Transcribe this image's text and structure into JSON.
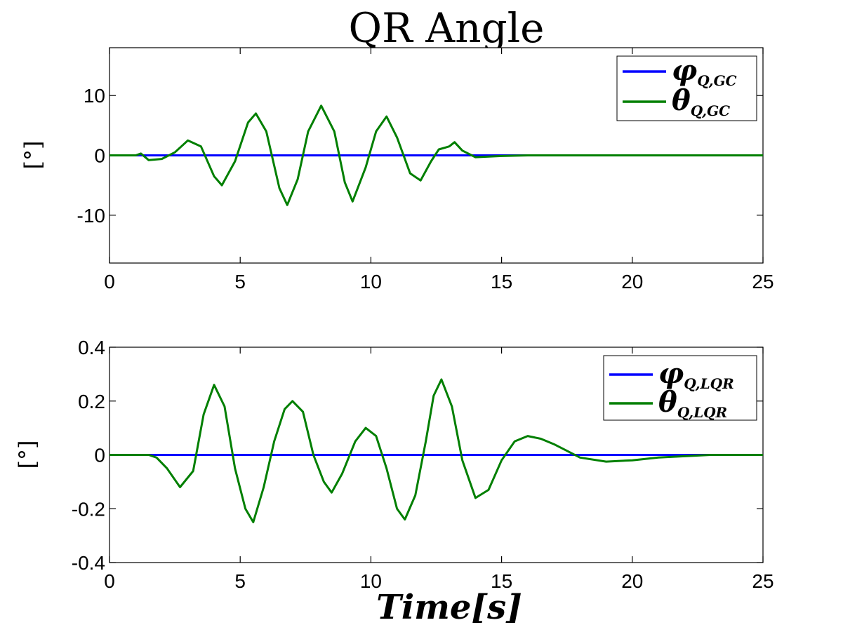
{
  "chart_data": [
    {
      "type": "line",
      "title": "QR Angle",
      "ylabel": "[°]",
      "xlabel": "",
      "xlim": [
        0,
        25
      ],
      "ylim": [
        -18,
        18
      ],
      "xticks": [
        0,
        5,
        10,
        15,
        20,
        25
      ],
      "xtick_labels": [
        "0",
        "5",
        "10",
        "15",
        "20",
        "25"
      ],
      "yticks": [
        -10,
        0,
        10
      ],
      "ytick_labels": [
        "-10",
        "0",
        "10"
      ],
      "legend_position": "top-right",
      "series": [
        {
          "name": "φ",
          "name_sub": "Q,GC",
          "color": "#0000ff",
          "x": [
            0,
            25
          ],
          "y": [
            0,
            0
          ]
        },
        {
          "name": "θ",
          "name_sub": "Q,GC",
          "color": "#007f00",
          "x": [
            0,
            1.0,
            1.2,
            1.5,
            2.0,
            2.5,
            3.0,
            3.5,
            4.0,
            4.3,
            4.8,
            5.3,
            5.6,
            6.0,
            6.5,
            6.8,
            7.2,
            7.6,
            8.1,
            8.6,
            9.0,
            9.3,
            9.8,
            10.2,
            10.6,
            11.0,
            11.5,
            11.9,
            12.3,
            12.6,
            13.0,
            13.2,
            13.5,
            14.0,
            14.5,
            15.0,
            16.0,
            17.0,
            25
          ],
          "y": [
            0,
            0,
            0.3,
            -0.8,
            -0.6,
            0.5,
            2.5,
            1.5,
            -3.5,
            -5.0,
            -1.0,
            5.5,
            7.0,
            4.0,
            -5.5,
            -8.3,
            -4.0,
            4.0,
            8.3,
            4.0,
            -4.5,
            -7.7,
            -2.0,
            4.0,
            6.5,
            3.0,
            -3.0,
            -4.2,
            -1.0,
            1.0,
            1.5,
            2.2,
            0.8,
            -0.3,
            -0.2,
            -0.1,
            0,
            0,
            0
          ]
        }
      ]
    },
    {
      "type": "line",
      "title": "",
      "ylabel": "[°]",
      "xlabel": "Time[s]",
      "xlim": [
        0,
        25
      ],
      "ylim": [
        -0.4,
        0.4
      ],
      "xticks": [
        0,
        5,
        10,
        15,
        20,
        25
      ],
      "xtick_labels": [
        "0",
        "5",
        "10",
        "15",
        "20",
        "25"
      ],
      "yticks": [
        -0.4,
        -0.2,
        0,
        0.2,
        0.4
      ],
      "ytick_labels": [
        "-0.4",
        "-0.2",
        "0",
        "0.2",
        "0.4"
      ],
      "legend_position": "top-right",
      "series": [
        {
          "name": "φ",
          "name_sub": "Q,LQR",
          "color": "#0000ff",
          "x": [
            0,
            25
          ],
          "y": [
            0,
            0
          ]
        },
        {
          "name": "θ",
          "name_sub": "Q,LQR",
          "color": "#007f00",
          "x": [
            0,
            1.5,
            1.8,
            2.2,
            2.7,
            3.2,
            3.6,
            4.0,
            4.4,
            4.8,
            5.2,
            5.5,
            5.9,
            6.3,
            6.7,
            7.0,
            7.4,
            7.8,
            8.2,
            8.5,
            8.9,
            9.4,
            9.8,
            10.2,
            10.6,
            11.0,
            11.3,
            11.7,
            12.1,
            12.4,
            12.7,
            13.1,
            13.5,
            14.0,
            14.5,
            15.0,
            15.5,
            16.0,
            16.5,
            17.0,
            17.5,
            18.0,
            19.0,
            20.0,
            21.0,
            22.0,
            23.0,
            25
          ],
          "y": [
            0,
            0,
            -0.01,
            -0.05,
            -0.12,
            -0.06,
            0.15,
            0.26,
            0.18,
            -0.05,
            -0.2,
            -0.25,
            -0.12,
            0.05,
            0.17,
            0.2,
            0.16,
            0.0,
            -0.1,
            -0.14,
            -0.07,
            0.05,
            0.1,
            0.07,
            -0.05,
            -0.2,
            -0.24,
            -0.15,
            0.05,
            0.22,
            0.28,
            0.18,
            -0.02,
            -0.16,
            -0.13,
            -0.02,
            0.05,
            0.07,
            0.06,
            0.04,
            0.015,
            -0.01,
            -0.025,
            -0.02,
            -0.01,
            -0.005,
            0.0,
            0
          ]
        }
      ]
    }
  ]
}
